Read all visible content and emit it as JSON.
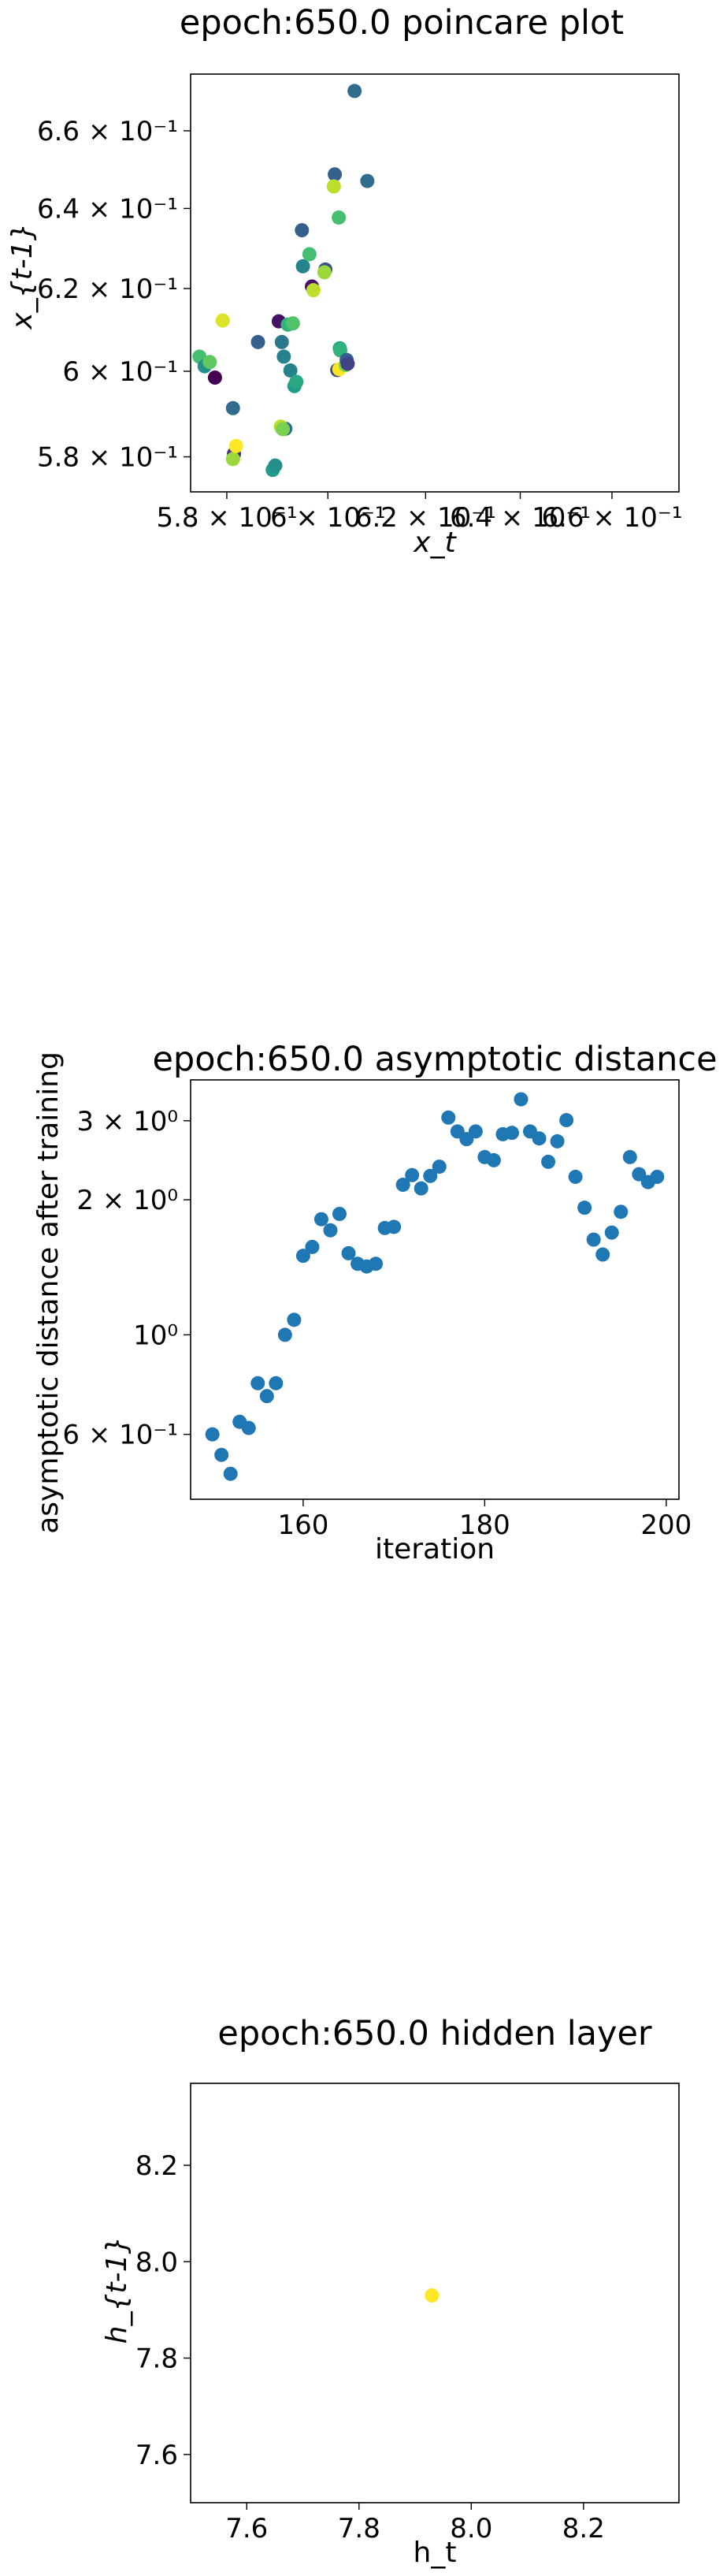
{
  "chart_data": [
    {
      "type": "scatter",
      "title": "epoch:650.0 poincare plot",
      "xlabel": "x_t",
      "ylabel": "x_{t-1}",
      "xscale": "log",
      "yscale": "log",
      "xlim": [
        0.573,
        0.675
      ],
      "ylim": [
        0.572,
        0.675
      ],
      "xticks": [
        {
          "v": 0.58,
          "label": "5.8 × 10⁻¹"
        },
        {
          "v": 0.6,
          "label": "6 × 10⁻¹"
        },
        {
          "v": 0.62,
          "label": "6.2 × 10⁻¹"
        },
        {
          "v": 0.64,
          "label": "6.4 × 10⁻¹"
        },
        {
          "v": 0.66,
          "label": "6.6 × 10⁻¹"
        }
      ],
      "yticks": [
        {
          "v": 0.58,
          "label": "5.8 × 10⁻¹"
        },
        {
          "v": 0.6,
          "label": "6 × 10⁻¹"
        },
        {
          "v": 0.62,
          "label": "6.2 × 10⁻¹"
        },
        {
          "v": 0.64,
          "label": "6.4 × 10⁻¹"
        },
        {
          "v": 0.66,
          "label": "6.6 × 10⁻¹"
        }
      ],
      "colormap": "viridis",
      "points": [
        {
          "x": 0.5747,
          "y": 0.6035,
          "c": 0.7
        },
        {
          "x": 0.5757,
          "y": 0.6012,
          "c": 0.5
        },
        {
          "x": 0.5767,
          "y": 0.6022,
          "c": 0.75
        },
        {
          "x": 0.5777,
          "y": 0.5985,
          "c": 0.0
        },
        {
          "x": 0.5792,
          "y": 0.6122,
          "c": 0.95
        },
        {
          "x": 0.5812,
          "y": 0.5913,
          "c": 0.35
        },
        {
          "x": 0.5814,
          "y": 0.5807,
          "c": 0.15
        },
        {
          "x": 0.5812,
          "y": 0.5795,
          "c": 0.85
        },
        {
          "x": 0.5818,
          "y": 0.5825,
          "c": 1.0
        },
        {
          "x": 0.5861,
          "y": 0.607,
          "c": 0.3
        },
        {
          "x": 0.589,
          "y": 0.577,
          "c": 0.55
        },
        {
          "x": 0.5895,
          "y": 0.578,
          "c": 0.5
        },
        {
          "x": 0.5902,
          "y": 0.612,
          "c": 0.05
        },
        {
          "x": 0.5908,
          "y": 0.607,
          "c": 0.4
        },
        {
          "x": 0.5912,
          "y": 0.6035,
          "c": 0.45
        },
        {
          "x": 0.592,
          "y": 0.6112,
          "c": 0.65
        },
        {
          "x": 0.5925,
          "y": 0.6002,
          "c": 0.45
        },
        {
          "x": 0.593,
          "y": 0.6115,
          "c": 0.72
        },
        {
          "x": 0.5933,
          "y": 0.5965,
          "c": 0.55
        },
        {
          "x": 0.5937,
          "y": 0.5975,
          "c": 0.6
        },
        {
          "x": 0.5908,
          "y": 0.5867,
          "c": 0.45
        },
        {
          "x": 0.5915,
          "y": 0.5865,
          "c": 0.35
        },
        {
          "x": 0.5906,
          "y": 0.587,
          "c": 0.9
        },
        {
          "x": 0.591,
          "y": 0.5864,
          "c": 0.8
        },
        {
          "x": 0.5948,
          "y": 0.6345,
          "c": 0.3
        },
        {
          "x": 0.595,
          "y": 0.6255,
          "c": 0.45
        },
        {
          "x": 0.5963,
          "y": 0.6285,
          "c": 0.7
        },
        {
          "x": 0.5968,
          "y": 0.6205,
          "c": 0.05
        },
        {
          "x": 0.5971,
          "y": 0.6196,
          "c": 0.9
        },
        {
          "x": 0.5995,
          "y": 0.6247,
          "c": 0.25
        },
        {
          "x": 0.5993,
          "y": 0.624,
          "c": 0.85
        },
        {
          "x": 0.6014,
          "y": 0.6487,
          "c": 0.3
        },
        {
          "x": 0.6012,
          "y": 0.6456,
          "c": 0.9
        },
        {
          "x": 0.6019,
          "y": 0.6003,
          "c": 0.2
        },
        {
          "x": 0.6023,
          "y": 0.6005,
          "c": 1.0
        },
        {
          "x": 0.6022,
          "y": 0.6377,
          "c": 0.7
        },
        {
          "x": 0.6024,
          "y": 0.6055,
          "c": 0.6
        },
        {
          "x": 0.6025,
          "y": 0.605,
          "c": 0.65
        },
        {
          "x": 0.6036,
          "y": 0.6015,
          "c": 0.8
        },
        {
          "x": 0.6038,
          "y": 0.6027,
          "c": 0.3
        },
        {
          "x": 0.604,
          "y": 0.6018,
          "c": 0.2
        },
        {
          "x": 0.6054,
          "y": 0.6705,
          "c": 0.35
        },
        {
          "x": 0.608,
          "y": 0.647,
          "c": 0.35
        }
      ]
    },
    {
      "type": "scatter",
      "title": "epoch:650.0 asymptotic distance",
      "xlabel": "iteration",
      "ylabel": "asymptotic distance after training",
      "yscale": "log",
      "xlim": [
        147.6,
        201.4
      ],
      "ylim": [
        0.43,
        3.7
      ],
      "xticks": [
        {
          "v": 160,
          "label": "160"
        },
        {
          "v": 180,
          "label": "180"
        },
        {
          "v": 200,
          "label": "200"
        }
      ],
      "yticks": [
        {
          "v": 0.6,
          "label": "6 × 10⁻¹"
        },
        {
          "v": 1.0,
          "label": "10⁰"
        },
        {
          "v": 2.0,
          "label": "2 × 10⁰"
        },
        {
          "v": 3.0,
          "label": "3 × 10⁰"
        }
      ],
      "color": "#1f77b4",
      "x": [
        150,
        151,
        152,
        153,
        154,
        155,
        156,
        157,
        158,
        159,
        160,
        161,
        162,
        163,
        164,
        165,
        166,
        167,
        168,
        169,
        170,
        171,
        172,
        173,
        174,
        175,
        176,
        177,
        178,
        179,
        180,
        181,
        182,
        183,
        184,
        185,
        186,
        187,
        188,
        189,
        190,
        191,
        192,
        193,
        194,
        195,
        196,
        197,
        198,
        199
      ],
      "y": [
        0.6,
        0.54,
        0.49,
        0.64,
        0.62,
        0.78,
        0.73,
        0.78,
        1.0,
        1.08,
        1.5,
        1.57,
        1.81,
        1.71,
        1.86,
        1.52,
        1.44,
        1.42,
        1.44,
        1.73,
        1.74,
        2.16,
        2.27,
        2.12,
        2.26,
        2.37,
        3.05,
        2.84,
        2.73,
        2.84,
        2.49,
        2.45,
        2.8,
        2.82,
        3.35,
        2.84,
        2.74,
        2.43,
        2.7,
        3.01,
        2.25,
        1.92,
        1.63,
        1.51,
        1.69,
        1.88,
        2.49,
        2.28,
        2.19,
        2.25
      ]
    },
    {
      "type": "scatter",
      "title": "epoch:650.0 hidden layer",
      "xlabel": "h_t",
      "ylabel": "h_{t-1}",
      "xlim": [
        7.5,
        8.37
      ],
      "ylim": [
        7.5,
        8.37
      ],
      "xticks": [
        {
          "v": 7.6,
          "label": "7.6"
        },
        {
          "v": 7.8,
          "label": "7.8"
        },
        {
          "v": 8.0,
          "label": "8.0"
        },
        {
          "v": 8.2,
          "label": "8.2"
        }
      ],
      "yticks": [
        {
          "v": 7.6,
          "label": "7.6"
        },
        {
          "v": 7.8,
          "label": "7.8"
        },
        {
          "v": 8.0,
          "label": "8.0"
        },
        {
          "v": 8.2,
          "label": "8.2"
        }
      ],
      "color": "#fde725",
      "points": [
        {
          "x": 7.93,
          "y": 7.93
        }
      ]
    }
  ]
}
